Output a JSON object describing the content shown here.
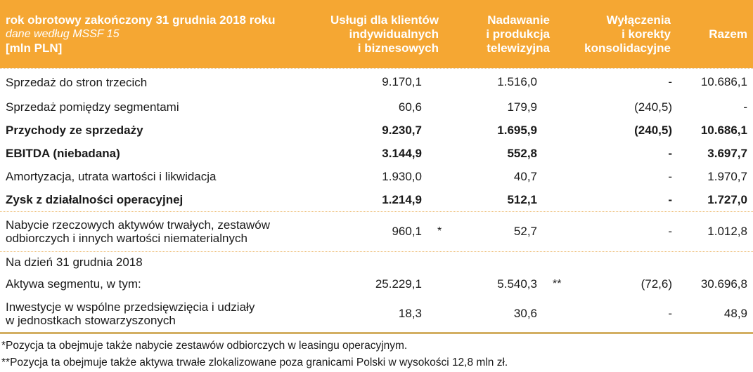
{
  "colors": {
    "header_background": "#F5A733",
    "header_text": "#FFFFFF",
    "dotted_separator": "#EDBB72",
    "bottom_rule": "#D3AF63",
    "body_text": "#1A1A1A"
  },
  "table_header": {
    "label_line1": "rok obrotowy zakończony 31 grudnia 2018 roku",
    "label_line2": "dane według MSSF 15",
    "label_line3": "[mln PLN]",
    "columns": [
      {
        "lines": [
          "Usługi dla klientów",
          "indywidualnych",
          "i biznesowych"
        ]
      },
      {
        "lines": [
          "Nadawanie",
          "i produkcja",
          "telewizyjna"
        ]
      },
      {
        "lines": [
          "Wyłączenia",
          "i korekty",
          "konsolidacyjne"
        ]
      },
      {
        "lines": [
          "Razem"
        ]
      }
    ]
  },
  "rows": [
    {
      "label": "Sprzedaż do stron trzecich",
      "label2": "",
      "c1": "9.170,1",
      "m1": "",
      "c2": "1.516,0",
      "m2": "",
      "c3": "-",
      "c4": "10.686,1"
    },
    {
      "label": "Sprzedaż pomiędzy segmentami",
      "label2": "",
      "c1": "60,6",
      "m1": "",
      "c2": "179,9",
      "m2": "",
      "c3": "(240,5)",
      "c4": "-"
    },
    {
      "label": "Przychody ze sprzedaży",
      "label2": "",
      "c1": "9.230,7",
      "m1": "",
      "c2": "1.695,9",
      "m2": "",
      "c3": "(240,5)",
      "c4": "10.686,1"
    },
    {
      "label": "EBITDA (niebadana)",
      "label2": "",
      "c1": "3.144,9",
      "m1": "",
      "c2": "552,8",
      "m2": "",
      "c3": "-",
      "c4": "3.697,7"
    },
    {
      "label": "Amortyzacja, utrata wartości i likwidacja",
      "label2": "",
      "c1": "1.930,0",
      "m1": "",
      "c2": "40,7",
      "m2": "",
      "c3": "-",
      "c4": "1.970,7"
    },
    {
      "label": "Zysk z działalności operacyjnej",
      "label2": "",
      "c1": "1.214,9",
      "m1": "",
      "c2": "512,1",
      "m2": "",
      "c3": "-",
      "c4": "1.727,0"
    },
    {
      "label": "Nabycie rzeczowych aktywów trwałych, zestawów",
      "label2": "odbiorczych i innych wartości niematerialnych",
      "c1": "960,1",
      "m1": "*",
      "c2": "52,7",
      "m2": "",
      "c3": "-",
      "c4": "1.012,8"
    },
    {
      "label": "Na dzień 31 grudnia 2018",
      "label2": "",
      "c1": "",
      "m1": "",
      "c2": "",
      "m2": "",
      "c3": "",
      "c4": ""
    },
    {
      "label": "Aktywa segmentu, w tym:",
      "label2": "",
      "c1": "25.229,1",
      "m1": "",
      "c2": "5.540,3",
      "m2": "**",
      "c3": "(72,6)",
      "c4": "30.696,8"
    },
    {
      "label": "Inwestycje w wspólne przedsięwzięcia i udziały",
      "label2": "w jednostkach stowarzyszonych",
      "c1": "18,3",
      "m1": "",
      "c2": "30,6",
      "m2": "",
      "c3": "-",
      "c4": "48,9"
    }
  ],
  "footnotes": [
    "*Pozycja ta obejmuje także nabycie zestawów odbiorczych w leasingu operacyjnym.",
    "**Pozycja ta obejmuje także aktywa trwałe zlokalizowane poza granicami Polski w wysokości 12,8 mln zł."
  ]
}
